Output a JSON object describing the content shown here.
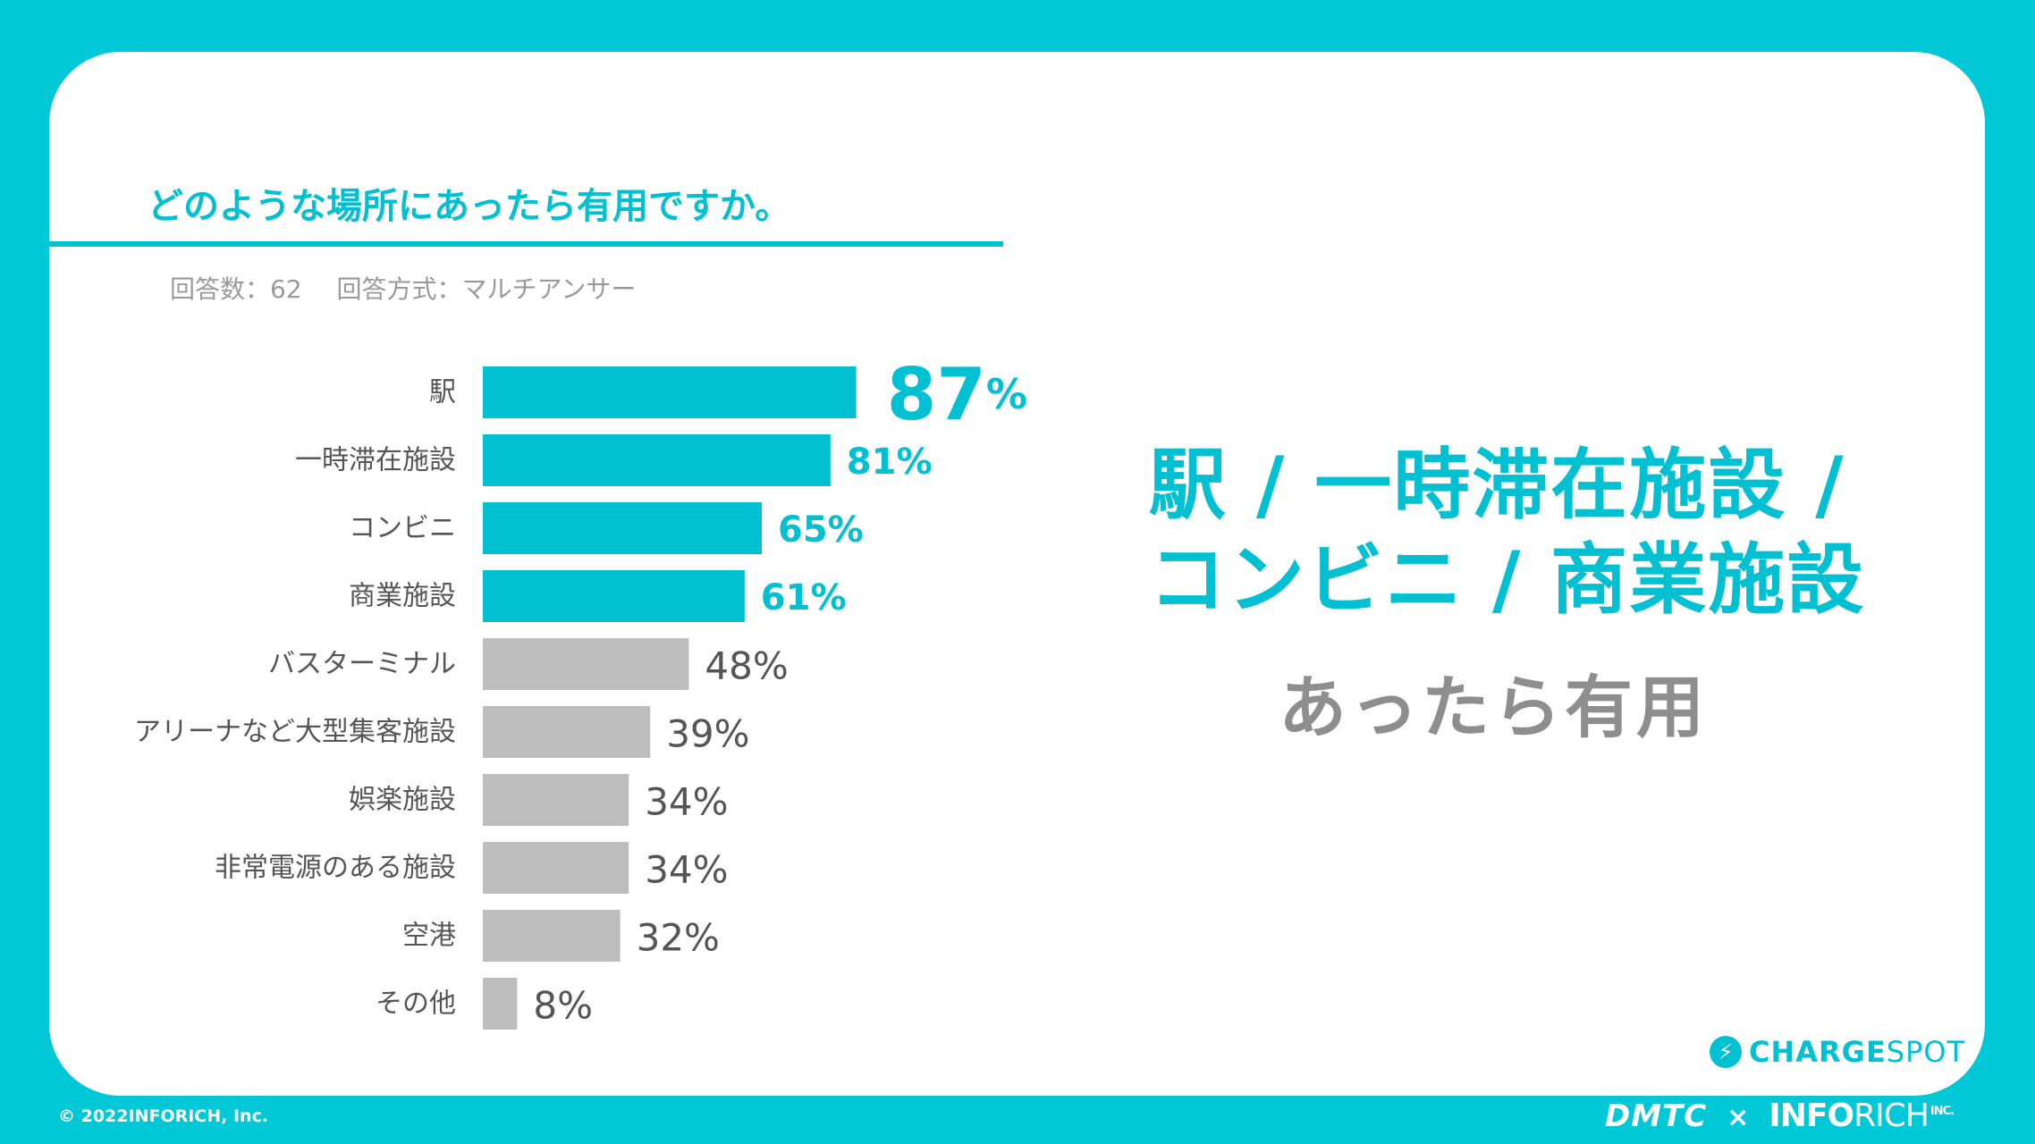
{
  "title": "どのような場所にあったら有用ですか。",
  "meta": {
    "respondents": "回答数：62",
    "method": "回答方式：マルチアンサー"
  },
  "headline": {
    "line1": "駅 / 一時滞在施設 /",
    "line2": "コンビニ / 商業施設",
    "sub": "あったら有用"
  },
  "brand": {
    "icon_name": "lightning-bolt-icon",
    "strong": "CHARGE",
    "light": "SPOT"
  },
  "footer": {
    "copyright": "© 2022INFORICH, Inc.",
    "partner1": "DMTC",
    "separator": "×",
    "partner2_bold": "INFO",
    "partner2_light": "RICH",
    "partner2_suffix": "INC."
  },
  "colors": {
    "highlight": "#00C0D2",
    "muted": "#BDBDBD",
    "background": "#00C8D7",
    "text": "#555555"
  },
  "chart_data": {
    "type": "bar",
    "orientation": "horizontal",
    "title": "どのような場所にあったら有用ですか。",
    "categories": [
      "駅",
      "一時滞在施設",
      "コンビニ",
      "商業施設",
      "バスターミナル",
      "アリーナなど大型集客施設",
      "娯楽施設",
      "非常電源のある施設",
      "空港",
      "その他"
    ],
    "values": [
      87,
      81,
      65,
      61,
      48,
      39,
      34,
      34,
      32,
      8
    ],
    "value_labels": [
      "87%",
      "81%",
      "65%",
      "61%",
      "48%",
      "39%",
      "34%",
      "34%",
      "32%",
      "8%"
    ],
    "highlighted": [
      true,
      true,
      true,
      true,
      false,
      false,
      false,
      false,
      false,
      false
    ],
    "unit": "%",
    "xlim": [
      0,
      100
    ]
  }
}
